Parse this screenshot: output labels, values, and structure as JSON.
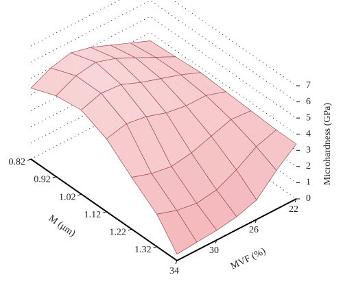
{
  "chart_data": {
    "type": "surface",
    "x_label": "MVF (%)",
    "y_label": "M (μm)",
    "z_label": "Microhardness (GPa)",
    "x": [
      22,
      24,
      26,
      28,
      30,
      32,
      34
    ],
    "y": [
      0.82,
      0.92,
      1.02,
      1.12,
      1.22,
      1.32,
      1.4
    ],
    "z": [
      [
        3.5,
        4.0,
        4.5,
        5.0,
        5.3,
        5.0,
        4.4
      ],
      [
        3.6,
        4.2,
        4.8,
        5.4,
        5.8,
        5.6,
        5.0
      ],
      [
        3.7,
        4.2,
        4.6,
        5.0,
        5.5,
        5.6,
        5.2
      ],
      [
        3.6,
        4.0,
        4.0,
        4.2,
        4.6,
        4.8,
        4.5
      ],
      [
        3.5,
        3.6,
        3.2,
        2.8,
        2.6,
        2.8,
        3.2
      ],
      [
        3.4,
        3.0,
        2.2,
        1.6,
        1.4,
        1.6,
        2.0
      ],
      [
        3.4,
        2.4,
        1.2,
        0.8,
        0.6,
        0.5,
        0.4
      ]
    ],
    "xlim": [
      34,
      22
    ],
    "ylim": [
      0.82,
      1.4
    ],
    "zlim": [
      0,
      7
    ],
    "xticks": [
      22,
      26,
      30,
      34
    ],
    "yticks": [
      0.82,
      0.92,
      1.02,
      1.12,
      1.22,
      1.32
    ],
    "zticks": [
      0,
      1,
      2,
      3,
      4,
      5,
      6,
      7
    ],
    "color": "#f2aeb2",
    "edge_color": "#9c4a55",
    "grid": true
  }
}
